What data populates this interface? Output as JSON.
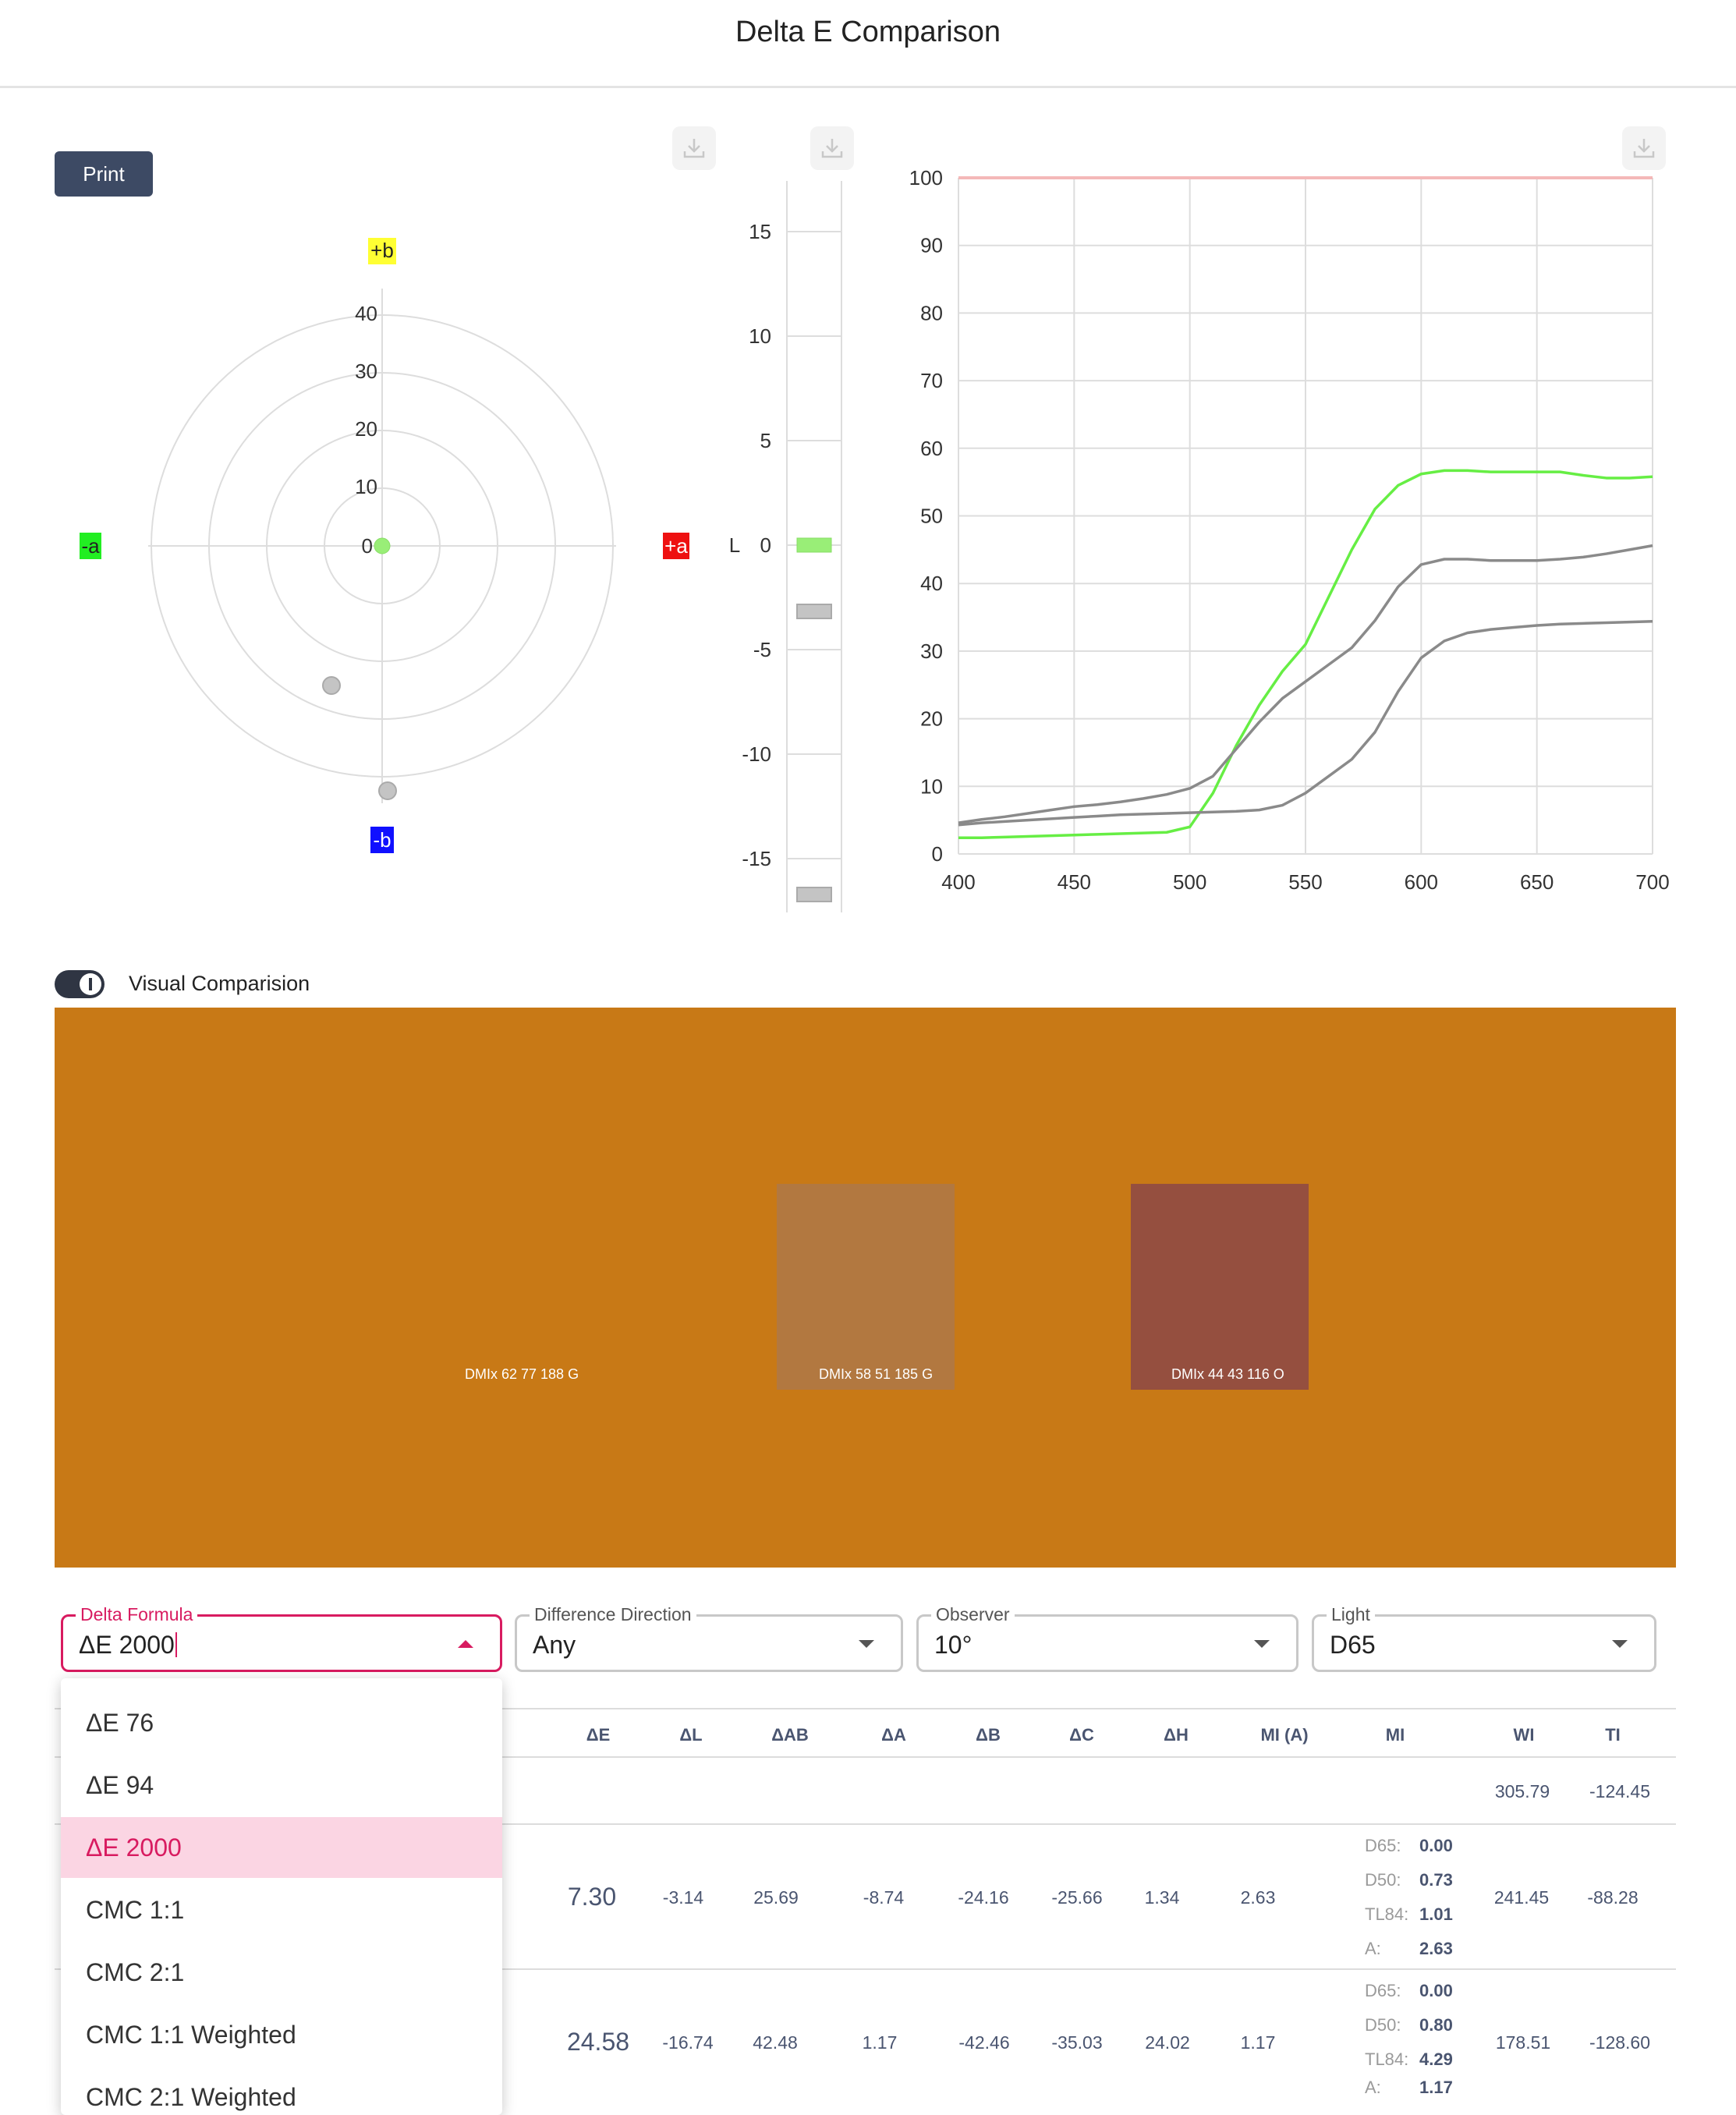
{
  "header": {
    "title": "Delta E Comparison"
  },
  "toolbar": {
    "print_label": "Print"
  },
  "polar_chart": {
    "labels": {
      "plus_b": "+b",
      "minus_b": "-b",
      "plus_a": "+a",
      "minus_a": "-a"
    },
    "ring_labels": [
      "40",
      "30",
      "20",
      "10",
      "0"
    ],
    "label_colors": {
      "plus_b": "#ffff33",
      "minus_b": "#1010ff",
      "plus_a": "#ee1111",
      "minus_a": "#22ee22"
    }
  },
  "lightness_chart": {
    "axis_label": "L",
    "ticks": [
      "15",
      "10",
      "5",
      "0",
      "-5",
      "-10",
      "-15"
    ]
  },
  "chart_data": {
    "type": "line",
    "x": [
      400,
      410,
      420,
      430,
      440,
      450,
      460,
      470,
      480,
      490,
      500,
      510,
      520,
      530,
      540,
      550,
      560,
      570,
      580,
      590,
      600,
      610,
      620,
      630,
      640,
      650,
      660,
      670,
      680,
      690,
      700
    ],
    "series": [
      {
        "color": "#66ee44",
        "values": [
          2.4,
          2.4,
          2.5,
          2.6,
          2.7,
          2.8,
          2.9,
          3.0,
          3.1,
          3.2,
          4.0,
          9.0,
          16.0,
          22.0,
          27.0,
          31.0,
          38.0,
          45.0,
          51.0,
          54.5,
          56.2,
          56.7,
          56.7,
          56.5,
          56.5,
          56.5,
          56.5,
          56.0,
          55.6,
          55.6,
          55.8
        ]
      },
      {
        "color": "#8a8a8a",
        "values": [
          4.6,
          5.1,
          5.5,
          6.0,
          6.5,
          7.0,
          7.3,
          7.7,
          8.2,
          8.8,
          9.7,
          11.5,
          15.5,
          19.5,
          23.0,
          25.5,
          28.0,
          30.5,
          34.5,
          39.5,
          42.8,
          43.6,
          43.6,
          43.4,
          43.4,
          43.4,
          43.6,
          43.9,
          44.4,
          45.0,
          45.6
        ]
      },
      {
        "color": "#8a8a8a",
        "values": [
          4.3,
          4.6,
          4.8,
          5.0,
          5.2,
          5.4,
          5.6,
          5.8,
          5.9,
          6.0,
          6.1,
          6.2,
          6.3,
          6.5,
          7.2,
          9.0,
          11.5,
          14.0,
          18.0,
          24.0,
          29.0,
          31.5,
          32.7,
          33.2,
          33.5,
          33.8,
          34.0,
          34.1,
          34.2,
          34.3,
          34.4
        ]
      }
    ],
    "reference_line": 100,
    "xlim": [
      400,
      700
    ],
    "ylim": [
      0,
      100
    ],
    "x_ticks": [
      "400",
      "450",
      "500",
      "550",
      "600",
      "650",
      "700"
    ],
    "y_ticks": [
      "0",
      "10",
      "20",
      "30",
      "40",
      "50",
      "60",
      "70",
      "80",
      "90",
      "100"
    ],
    "grid": true
  },
  "visual_comparison": {
    "toggle_label": "Visual Comparision",
    "toggle_on": true,
    "background_color": "#c87916",
    "samples": [
      {
        "label": "DMIx 62 77 188 G",
        "color": "#c87916"
      },
      {
        "label": "DMIx 58 51 185 G",
        "color": "#b27840"
      },
      {
        "label": "DMIx 44 43 116 O",
        "color": "#954f3f"
      }
    ]
  },
  "controls": {
    "delta_formula": {
      "label": "Delta Formula",
      "value": "ΔE 2000"
    },
    "difference_direction": {
      "label": "Difference Direction",
      "value": "Any"
    },
    "observer": {
      "label": "Observer",
      "value": "10°"
    },
    "light": {
      "label": "Light",
      "value": "D65"
    }
  },
  "dropdown": {
    "options": [
      "ΔE 76",
      "ΔE 94",
      "ΔE 2000",
      "CMC 1:1",
      "CMC 2:1",
      "CMC 1:1 Weighted",
      "CMC 2:1 Weighted"
    ],
    "selected": "ΔE 2000"
  },
  "table": {
    "headers": [
      "ΔE",
      "ΔL",
      "ΔAB",
      "ΔA",
      "ΔB",
      "ΔC",
      "ΔH",
      "MI (A)",
      "MI",
      "WI",
      "TI"
    ],
    "rows": [
      {
        "de": "",
        "dl": "",
        "dab": "",
        "da": "",
        "db": "",
        "dc": "",
        "dh": "",
        "mia": "",
        "wi": "305.79",
        "ti": "-124.45",
        "mi": []
      },
      {
        "de": "7.30",
        "dl": "-3.14",
        "dab": "25.69",
        "da": "-8.74",
        "db": "-24.16",
        "dc": "-25.66",
        "dh": "1.34",
        "mia": "2.63",
        "wi": "241.45",
        "ti": "-88.28",
        "mi": [
          {
            "k": "D65:",
            "v": "0.00"
          },
          {
            "k": "D50:",
            "v": "0.73"
          },
          {
            "k": "TL84:",
            "v": "1.01"
          },
          {
            "k": "A:",
            "v": "2.63"
          }
        ]
      },
      {
        "de": "24.58",
        "dl": "-16.74",
        "dab": "42.48",
        "da": "1.17",
        "db": "-42.46",
        "dc": "-35.03",
        "dh": "24.02",
        "mia": "1.17",
        "wi": "178.51",
        "ti": "-128.60",
        "mi": [
          {
            "k": "D65:",
            "v": "0.00"
          },
          {
            "k": "D50:",
            "v": "0.80"
          },
          {
            "k": "TL84:",
            "v": "4.29"
          },
          {
            "k": "A:",
            "v": "1.17"
          }
        ]
      }
    ]
  }
}
